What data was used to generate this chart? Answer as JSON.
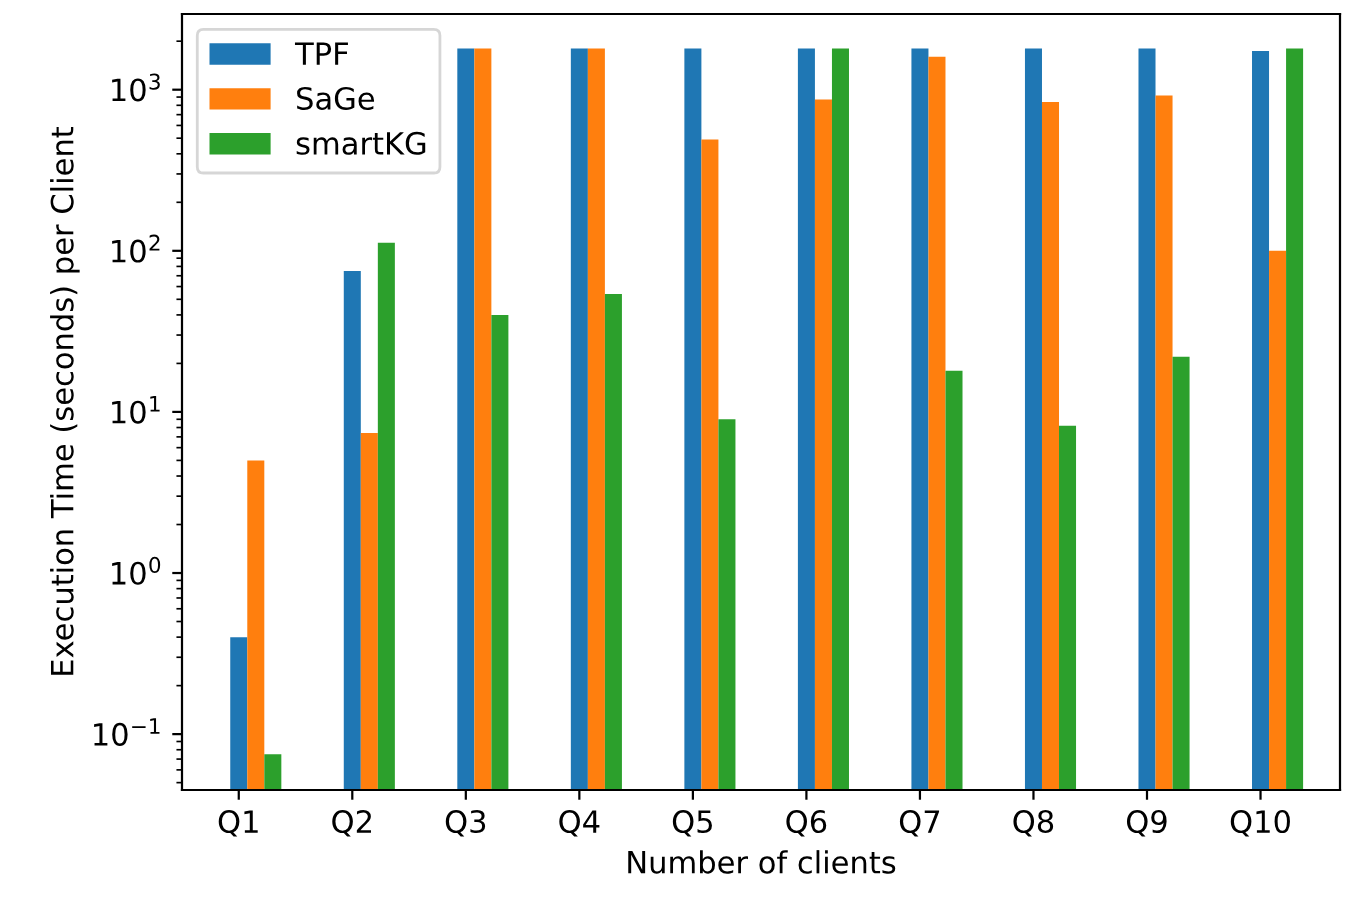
{
  "chart_data": {
    "type": "bar",
    "xlabel": "Number of clients",
    "ylabel": "Execution Time (seconds) per Client",
    "log": "y",
    "legend": "top left",
    "grid": false,
    "categories": [
      "Q1",
      "Q2",
      "Q3",
      "Q4",
      "Q5",
      "Q6",
      "Q7",
      "Q8",
      "Q9",
      "Q10"
    ],
    "ylim": [
      0.045,
      2950
    ],
    "yticks": [
      {
        "value": 0.1,
        "label": "10$^{−1}$"
      },
      {
        "value": 1,
        "label": "10$^{0}$"
      },
      {
        "value": 10,
        "label": "10$^{1}$"
      },
      {
        "value": 100,
        "label": "10$^{2}$"
      },
      {
        "value": 1000,
        "label": "10$^{3}$"
      }
    ],
    "series": [
      {
        "name": "TPF",
        "color": "#1f77b4",
        "values": [
          0.4,
          75,
          1800,
          1800,
          1800,
          1800,
          1800,
          1800,
          1800,
          1740
        ]
      },
      {
        "name": "SaGe",
        "color": "#ff7f0e",
        "values": [
          5,
          7.4,
          1800,
          1800,
          490,
          870,
          1600,
          840,
          920,
          100
        ]
      },
      {
        "name": "smartKG",
        "color": "#2ca02c",
        "values": [
          0.075,
          112,
          40,
          54,
          9,
          1800,
          18,
          8.2,
          22,
          1800
        ]
      }
    ]
  }
}
